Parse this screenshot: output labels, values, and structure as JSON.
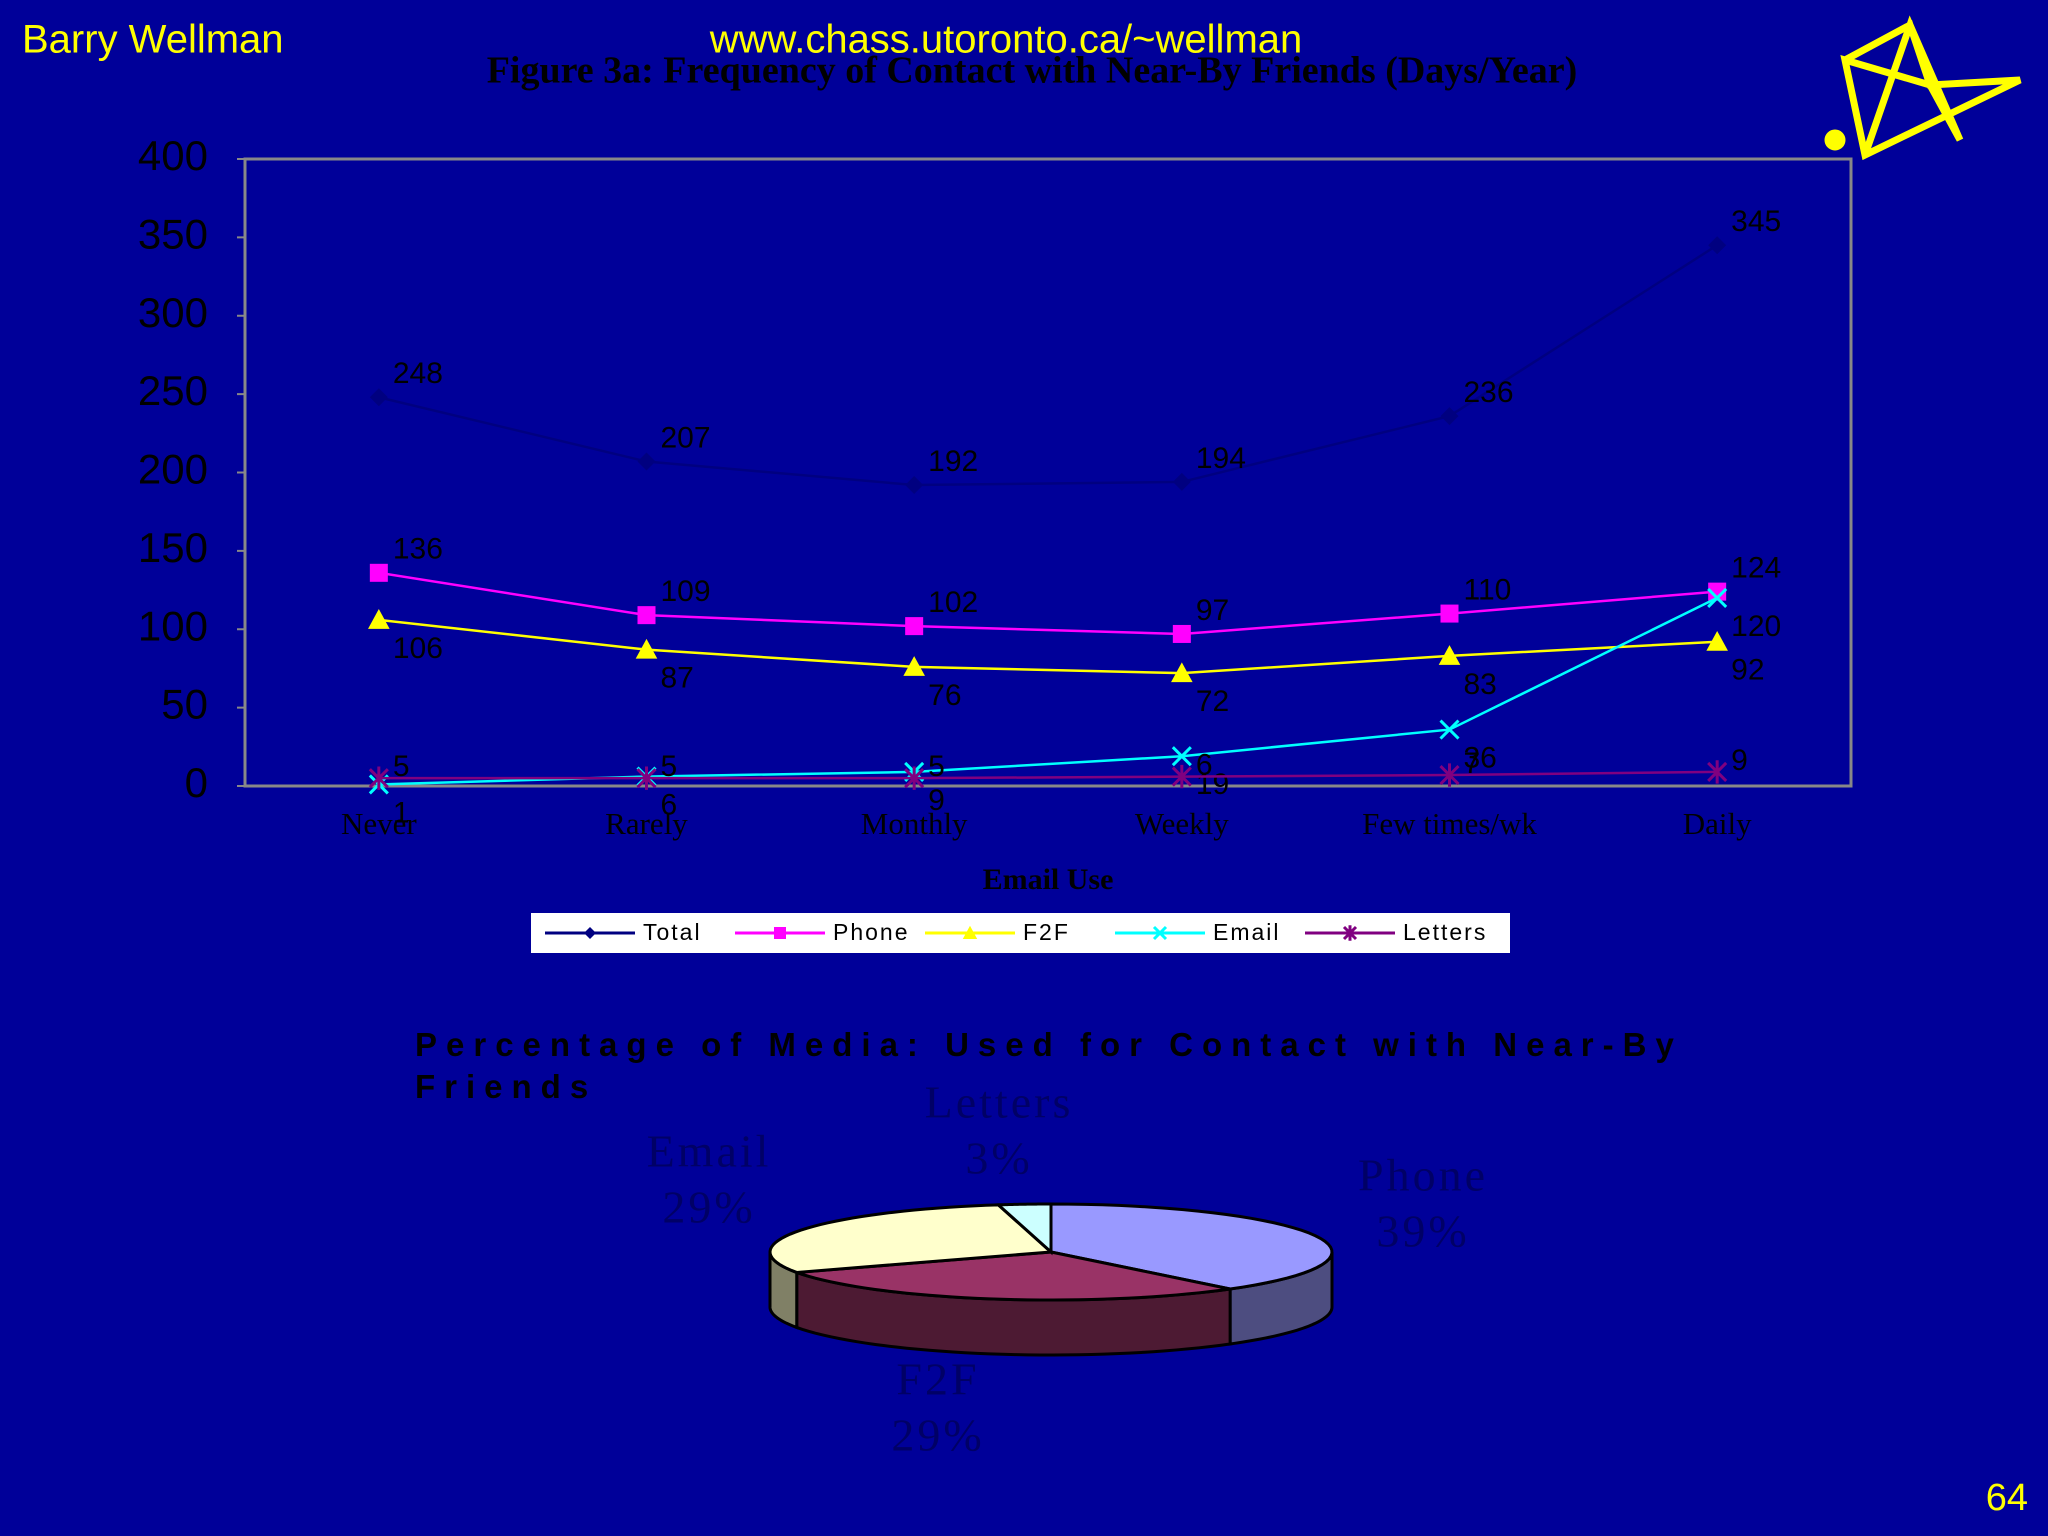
{
  "header": {
    "author": "Barry Wellman",
    "url": "www.chass.utoronto.ca/~wellman",
    "page_number": "64"
  },
  "chart_data": [
    {
      "type": "line",
      "title": "Figure 3a: Frequency of Contact with Near-By Friends (Days/Year)",
      "x_label": "Email Use",
      "categories": [
        "Never",
        "Rarely",
        "Monthly",
        "Weekly",
        "Few times/wk",
        "Daily"
      ],
      "series": [
        {
          "name": "Total",
          "color": "#000080",
          "marker": "diamond",
          "values": [
            248,
            207,
            192,
            194,
            236,
            345
          ]
        },
        {
          "name": "Phone",
          "color": "#ff00ff",
          "marker": "square",
          "values": [
            136,
            109,
            102,
            97,
            110,
            124
          ]
        },
        {
          "name": "F2F",
          "color": "#ffff00",
          "marker": "triangle",
          "values": [
            106,
            87,
            76,
            72,
            83,
            92
          ]
        },
        {
          "name": "Email",
          "color": "#00ffff",
          "marker": "x",
          "values": [
            1,
            6,
            9,
            19,
            36,
            120
          ]
        },
        {
          "name": "Letters",
          "color": "#800080",
          "marker": "star",
          "values": [
            5,
            5,
            5,
            6,
            7,
            9
          ]
        }
      ],
      "ylim": [
        0,
        400
      ],
      "yticks": [
        0,
        50,
        100,
        150,
        200,
        250,
        300,
        350,
        400
      ],
      "grid": false,
      "legend": "bottom"
    },
    {
      "type": "pie3d",
      "title": "Percentage of Media: Used for Contact with Near-By Friends",
      "categories": [
        "Phone",
        "F2F",
        "Email",
        "Letters"
      ],
      "values": [
        39,
        29,
        29,
        3
      ],
      "value_labels": [
        "39%",
        "29%",
        "29%",
        "3%"
      ],
      "colors": [
        "#9999ff",
        "#993366",
        "#ffffcc",
        "#ccffff"
      ]
    }
  ]
}
